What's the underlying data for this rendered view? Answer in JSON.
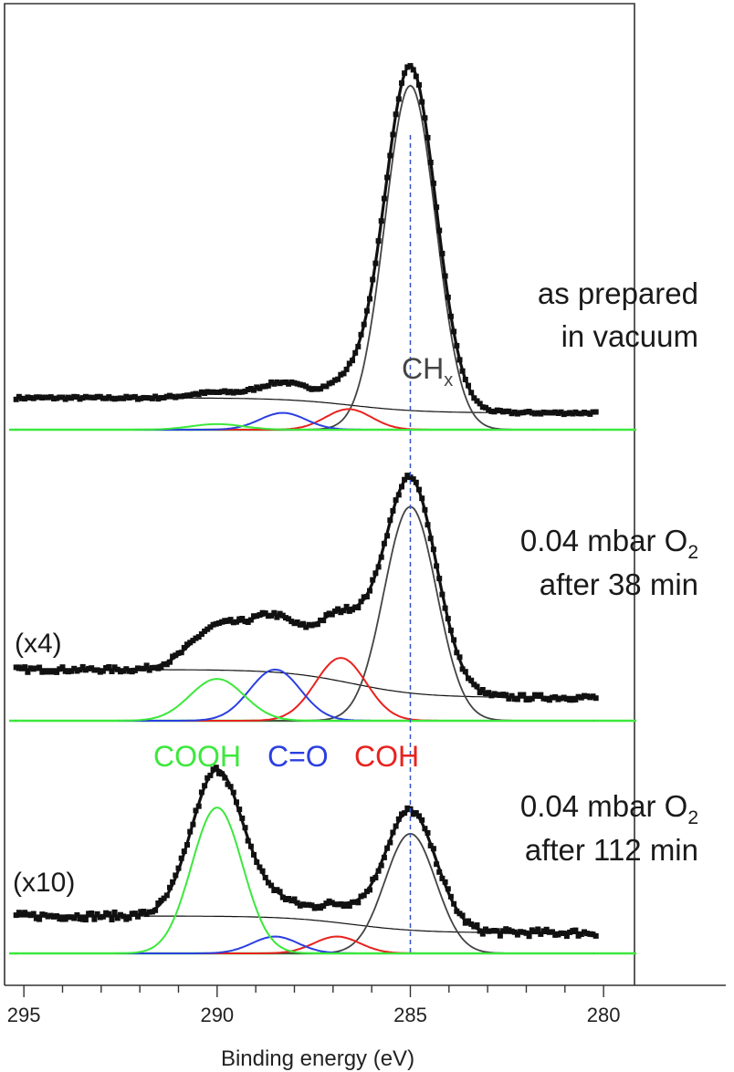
{
  "chart_data": {
    "type": "line",
    "title": "",
    "xlabel": "Binding energy (eV)",
    "ylabel": "",
    "xlim": [
      295.5,
      279.2
    ],
    "x_reversed": true,
    "grid": false,
    "x_ticks": [
      "295",
      "290",
      "285",
      "280"
    ],
    "x_tick_values": [
      295,
      290,
      285,
      280
    ],
    "reference_line": {
      "x": 285.0,
      "style": "dashed",
      "color": "#3355cc"
    },
    "colors": {
      "data": "#111111",
      "envelope": "#111111",
      "background": "#111111",
      "chx": "#444444",
      "coh": "#e8221e",
      "co": "#2b3fe0",
      "cooh": "#3ce83c"
    },
    "component_labels": {
      "chx": {
        "prefix": "CH",
        "sub": "x"
      },
      "cooh": "COOH",
      "co": "C=O",
      "coh": "COH"
    },
    "panels": [
      {
        "id": "vacuum",
        "condition_line1": "as prepared",
        "condition_line2": "in vacuum",
        "scale_label": "",
        "units": "normalized intensity (panel height 0-1)",
        "background": {
          "high_be": 0.085,
          "low_be": 0.045,
          "ref_be": 286.5,
          "width": 0.9
        },
        "components": [
          {
            "name": "CHx",
            "center": 285.0,
            "fwhm": 1.55,
            "height": 0.92
          },
          {
            "name": "COH",
            "center": 286.6,
            "fwhm": 1.4,
            "height": 0.055
          },
          {
            "name": "C=O",
            "center": 288.3,
            "fwhm": 1.4,
            "height": 0.045
          },
          {
            "name": "COOH",
            "center": 290.0,
            "fwhm": 1.6,
            "height": 0.015
          }
        ],
        "noise": 0.004
      },
      {
        "id": "38min",
        "condition_line1": "0.04 mbar O",
        "condition_sub": "2",
        "condition_line2": "after 38 min",
        "scale_label": "(x4)",
        "units": "normalized intensity (panel height 0-1)",
        "background": {
          "high_be": 0.22,
          "low_be": 0.1,
          "ref_be": 286.5,
          "width": 0.9
        },
        "components": [
          {
            "name": "CHx",
            "center": 285.0,
            "fwhm": 1.6,
            "height": 0.92
          },
          {
            "name": "COH",
            "center": 286.8,
            "fwhm": 1.55,
            "height": 0.27
          },
          {
            "name": "C=O",
            "center": 288.5,
            "fwhm": 1.55,
            "height": 0.22
          },
          {
            "name": "COOH",
            "center": 290.0,
            "fwhm": 1.65,
            "height": 0.18
          }
        ],
        "noise": 0.012
      },
      {
        "id": "112min",
        "condition_line1": "0.04 mbar O",
        "condition_sub": "2",
        "condition_line2": "after 112 min",
        "scale_label": "(x10)",
        "units": "normalized intensity (panel height 0-1)",
        "background": {
          "high_be": 0.2,
          "low_be": 0.11,
          "ref_be": 286.5,
          "width": 0.9
        },
        "components": [
          {
            "name": "CHx",
            "center": 285.0,
            "fwhm": 1.55,
            "height": 0.64
          },
          {
            "name": "COH",
            "center": 286.9,
            "fwhm": 1.4,
            "height": 0.09
          },
          {
            "name": "C=O",
            "center": 288.5,
            "fwhm": 1.4,
            "height": 0.09
          },
          {
            "name": "COOH",
            "center": 290.0,
            "fwhm": 1.55,
            "height": 0.78
          }
        ],
        "noise": 0.02
      }
    ]
  }
}
